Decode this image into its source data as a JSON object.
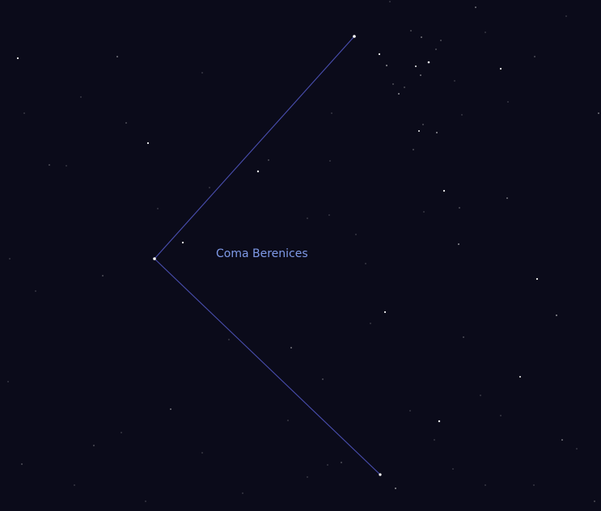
{
  "constellation": {
    "name": "Coma Berenices"
  },
  "colors": {
    "background": "#0b0b1a",
    "line": "#4a4fb0",
    "label": "#7f9ae8",
    "star": "#ffffff"
  }
}
